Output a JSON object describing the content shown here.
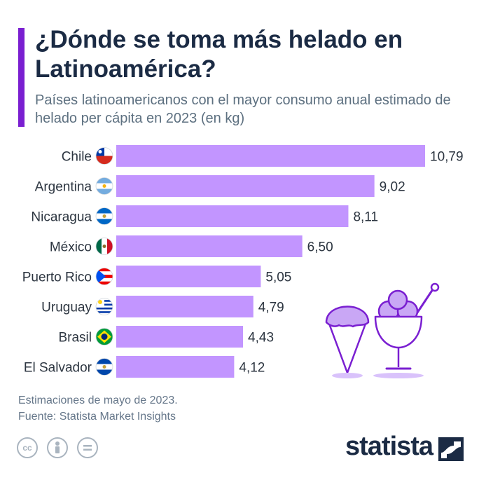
{
  "header": {
    "title": "¿Dónde se toma más helado en Latinoamérica?",
    "subtitle": "Países latinoamericanos con el mayor consumo anual estimado de helado per cápita en 2023 (en kg)"
  },
  "chart_data": {
    "type": "bar",
    "orientation": "horizontal",
    "title": "¿Dónde se toma más helado en Latinoamérica?",
    "subtitle": "Países latinoamericanos con el mayor consumo anual estimado de helado per cápita en 2023 (en kg)",
    "categories": [
      "Chile",
      "Argentina",
      "Nicaragua",
      "México",
      "Puerto Rico",
      "Uruguay",
      "Brasil",
      "El Salvador"
    ],
    "values": [
      10.79,
      9.02,
      8.11,
      6.5,
      5.05,
      4.79,
      4.43,
      4.12
    ],
    "value_labels": [
      "10,79",
      "9,02",
      "8,11",
      "6,50",
      "5,05",
      "4,79",
      "4,43",
      "4,12"
    ],
    "flags": [
      "chile-flag-icon",
      "argentina-flag-icon",
      "nicaragua-flag-icon",
      "mexico-flag-icon",
      "puerto-rico-flag-icon",
      "uruguay-flag-icon",
      "brasil-flag-icon",
      "el-salvador-flag-icon"
    ],
    "xlim": [
      0,
      10.79
    ],
    "unit": "kg",
    "bar_color": "#c295ff"
  },
  "footer": {
    "note": "Estimaciones de mayo de 2023.",
    "source": "Fuente: Statista Market Insights",
    "cc_icons": [
      "cc-icon",
      "attribution-icon",
      "no-derivatives-icon"
    ],
    "brand": "statista"
  },
  "colors": {
    "accent": "#7a1fd1",
    "title": "#1b2b44",
    "bar": "#c295ff",
    "muted": "#5d7080"
  }
}
